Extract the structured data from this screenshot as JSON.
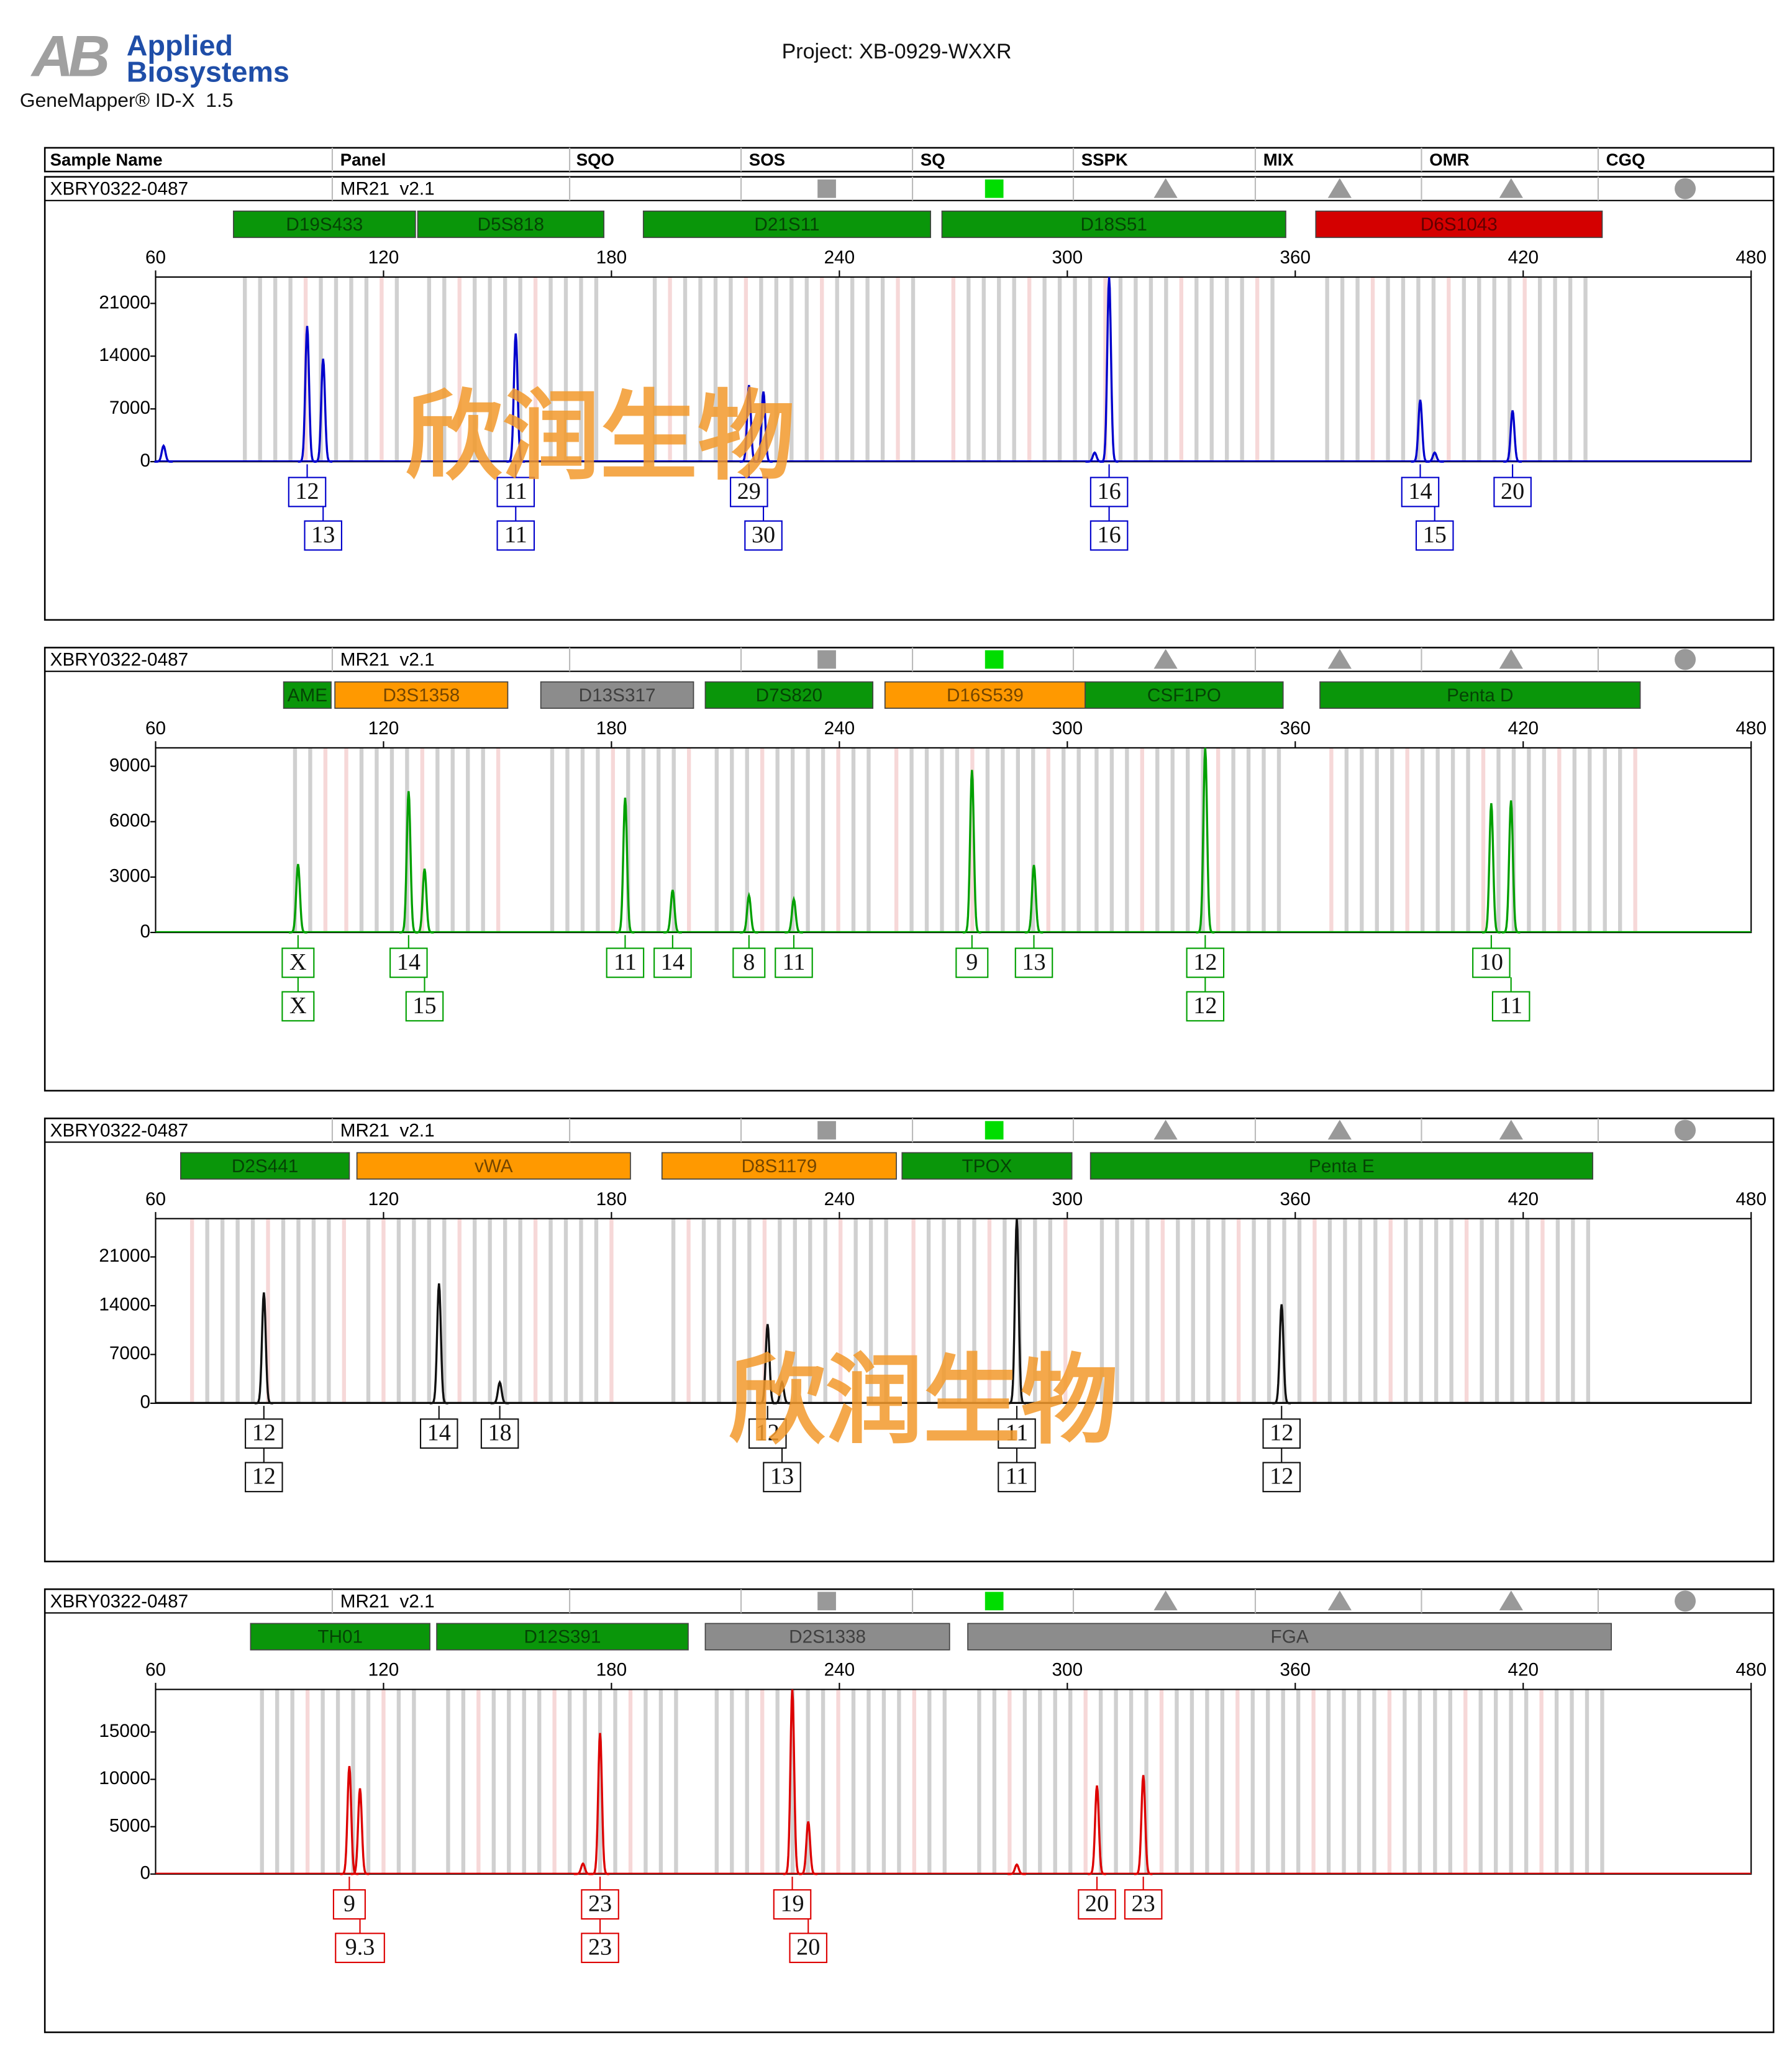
{
  "header": {
    "logo": "AB",
    "brand": [
      "Applied",
      "Biosystems"
    ],
    "software": "GeneMapper® ID-X  1.5",
    "project": "Project: XB-0929-WXXR",
    "columns": [
      "Sample Name",
      "Panel",
      "SQO",
      "SOS",
      "SQ",
      "SSPK",
      "MIX",
      "OMR",
      "CGQ"
    ]
  },
  "chart_data": [
    {
      "type": "electropherogram",
      "sample_name": "XBRY0322-0487",
      "panel": "MR21  v2.1",
      "color": "#0000cc",
      "watermark": "欣润生物",
      "xlim": [
        60,
        480
      ],
      "xticks": [
        60,
        120,
        180,
        240,
        300,
        360,
        420,
        480
      ],
      "ylim": [
        0,
        24500
      ],
      "yticks": [
        0,
        7000,
        14000,
        21000
      ],
      "markers": [
        {
          "name": "D19S433",
          "color": "#0a960a",
          "range": [
            80.5,
            128.4
          ],
          "alleles": [
            {
              "label": "12",
              "x": 99.9
            },
            {
              "label": "13",
              "x": 104.1
            }
          ]
        },
        {
          "name": "D5S818",
          "color": "#0a960a",
          "range": [
            129,
            178
          ],
          "alleles": [
            {
              "label": "11",
              "x": 154.8
            },
            {
              "label": "11",
              "x": 154.8
            }
          ]
        },
        {
          "name": "D21S11",
          "color": "#0a960a",
          "range": [
            188.4,
            264
          ],
          "alleles": [
            {
              "label": "29",
              "x": 216.2
            },
            {
              "label": "30",
              "x": 220
            }
          ]
        },
        {
          "name": "D18S51",
          "color": "#0a960a",
          "range": [
            267,
            357.5
          ],
          "alleles": [
            {
              "label": "16",
              "x": 311
            },
            {
              "label": "16",
              "x": 311
            }
          ]
        },
        {
          "name": "D6S1043",
          "color": "#d40000",
          "range": [
            365.4,
            440.8
          ],
          "alleles": [
            {
              "label": "14",
              "x": 392.9
            },
            {
              "label": "15",
              "x": 396.7
            },
            {
              "label": "20",
              "x": 417.2
            }
          ]
        }
      ],
      "peaks": {
        "x": [
          62.1,
          99.9,
          104.1,
          154.8,
          216.2,
          220,
          307.2,
          311,
          392.9,
          396.7,
          417.2
        ],
        "values": [
          2100,
          18000,
          13650,
          17000,
          10150,
          9300,
          1200,
          24500,
          8200,
          1200,
          6800
        ]
      }
    },
    {
      "type": "electropherogram",
      "sample_name": "XBRY0322-0487",
      "panel": "MR21  v2.1",
      "color": "#00a000",
      "xlim": [
        60,
        480
      ],
      "xticks": [
        60,
        120,
        180,
        240,
        300,
        360,
        420,
        480
      ],
      "ylim": [
        0,
        10000
      ],
      "yticks": [
        0,
        3000,
        6000,
        9000
      ],
      "markers": [
        {
          "name": "AME",
          "color": "#0a960a",
          "range": [
            93.7,
            106.2
          ],
          "alleles": [
            {
              "label": "X",
              "x": 97.5
            },
            {
              "label": "X",
              "x": 97.5
            }
          ]
        },
        {
          "name": "D3S1358",
          "color": "#ff9900",
          "range": [
            107.2,
            152.7
          ],
          "alleles": [
            {
              "label": "14",
              "x": 126.6
            },
            {
              "label": "15",
              "x": 130.8
            }
          ]
        },
        {
          "name": "D13S317",
          "color": "#8c8c8c",
          "range": [
            161.4,
            201.6
          ],
          "alleles": [
            {
              "label": "11",
              "x": 183.6
            },
            {
              "label": "14",
              "x": 196.1
            }
          ]
        },
        {
          "name": "D7S820",
          "color": "#0a960a",
          "range": [
            204.7,
            248.8
          ],
          "alleles": [
            {
              "label": "8",
              "x": 216.2
            },
            {
              "label": "11",
              "x": 228
            }
          ]
        },
        {
          "name": "D16S539",
          "color": "#ff9900",
          "range": [
            252,
            304.7
          ],
          "alleles": [
            {
              "label": "9",
              "x": 274.9
            },
            {
              "label": "13",
              "x": 291.2
            }
          ]
        },
        {
          "name": "CSF1PO",
          "color": "#0a960a",
          "range": [
            304.7,
            356.8
          ],
          "alleles": [
            {
              "label": "12",
              "x": 336.3
            },
            {
              "label": "12",
              "x": 336.3
            }
          ]
        },
        {
          "name": "Penta D",
          "color": "#0a960a",
          "range": [
            366.5,
            450.8
          ],
          "alleles": [
            {
              "label": "10",
              "x": 411.6
            },
            {
              "label": "11",
              "x": 416.8
            }
          ]
        }
      ],
      "peaks": {
        "x": [
          97.5,
          126.6,
          130.8,
          183.6,
          196.1,
          216.2,
          228,
          274.9,
          291.2,
          336.3,
          411.6,
          416.8
        ],
        "values": [
          3700,
          7650,
          3450,
          7300,
          2300,
          2000,
          1800,
          8800,
          3650,
          10000,
          7000,
          7150
        ]
      }
    },
    {
      "type": "electropherogram",
      "sample_name": "XBRY0322-0487",
      "panel": "MR21  v2.1",
      "color": "#111111",
      "watermark": "欣润生物",
      "xlim": [
        60,
        480
      ],
      "xticks": [
        60,
        120,
        180,
        240,
        300,
        360,
        420,
        480
      ],
      "ylim": [
        0,
        26500
      ],
      "yticks": [
        0,
        7000,
        14000,
        21000
      ],
      "markers": [
        {
          "name": "D2S441",
          "color": "#0a960a",
          "range": [
            66.6,
            111
          ],
          "alleles": [
            {
              "label": "12",
              "x": 88.5
            },
            {
              "label": "12",
              "x": 88.5
            }
          ]
        },
        {
          "name": "vWA",
          "color": "#ff9900",
          "range": [
            113,
            185
          ],
          "alleles": [
            {
              "label": "14",
              "x": 134.6
            },
            {
              "label": "18",
              "x": 150.6
            }
          ]
        },
        {
          "name": "D8S1179",
          "color": "#ff9900",
          "range": [
            193.3,
            255
          ],
          "alleles": [
            {
              "label": "12",
              "x": 221.1
            },
            {
              "label": "13",
              "x": 224.9
            }
          ]
        },
        {
          "name": "TPOX",
          "color": "#0a960a",
          "range": [
            256.5,
            301.2
          ],
          "alleles": [
            {
              "label": "11",
              "x": 286.7
            },
            {
              "label": "11",
              "x": 286.7
            }
          ]
        },
        {
          "name": "Penta E",
          "color": "#0a960a",
          "range": [
            306.1,
            438.3
          ],
          "alleles": [
            {
              "label": "12",
              "x": 356.4
            },
            {
              "label": "12",
              "x": 356.4
            }
          ]
        }
      ],
      "peaks": {
        "x": [
          88.5,
          134.6,
          150.6,
          221.1,
          224.9,
          286.7,
          356.4
        ],
        "values": [
          15900,
          17200,
          3000,
          11350,
          3000,
          26500,
          14200
        ]
      }
    },
    {
      "type": "electropherogram",
      "sample_name": "XBRY0322-0487",
      "panel": "MR21  v2.1",
      "color": "#dd0000",
      "xlim": [
        60,
        480
      ],
      "xticks": [
        60,
        120,
        180,
        240,
        300,
        360,
        420,
        480
      ],
      "ylim": [
        0,
        19500
      ],
      "yticks": [
        0,
        5000,
        10000,
        15000
      ],
      "markers": [
        {
          "name": "TH01",
          "color": "#0a960a",
          "range": [
            85,
            132.2
          ],
          "alleles": [
            {
              "label": "9",
              "x": 111
            },
            {
              "label": "9.3",
              "x": 113.8
            }
          ]
        },
        {
          "name": "D12S391",
          "color": "#0a960a",
          "range": [
            134,
            200.2
          ],
          "alleles": [
            {
              "label": "23",
              "x": 177
            },
            {
              "label": "23",
              "x": 177
            }
          ]
        },
        {
          "name": "D2S1338",
          "color": "#8c8c8c",
          "range": [
            204.7,
            269
          ],
          "alleles": [
            {
              "label": "19",
              "x": 227.6
            },
            {
              "label": "20",
              "x": 231.8
            }
          ]
        },
        {
          "name": "FGA",
          "color": "#8c8c8c",
          "range": [
            273.8,
            443.2
          ],
          "alleles": [
            {
              "label": "20",
              "x": 307.8
            },
            {
              "label": "23",
              "x": 320
            }
          ]
        }
      ],
      "peaks": {
        "x": [
          111,
          113.8,
          172.5,
          177,
          227.6,
          231.8,
          286.7,
          307.8,
          320
        ],
        "values": [
          11400,
          9050,
          1100,
          14900,
          19500,
          5550,
          1000,
          9350,
          10450
        ]
      }
    }
  ]
}
